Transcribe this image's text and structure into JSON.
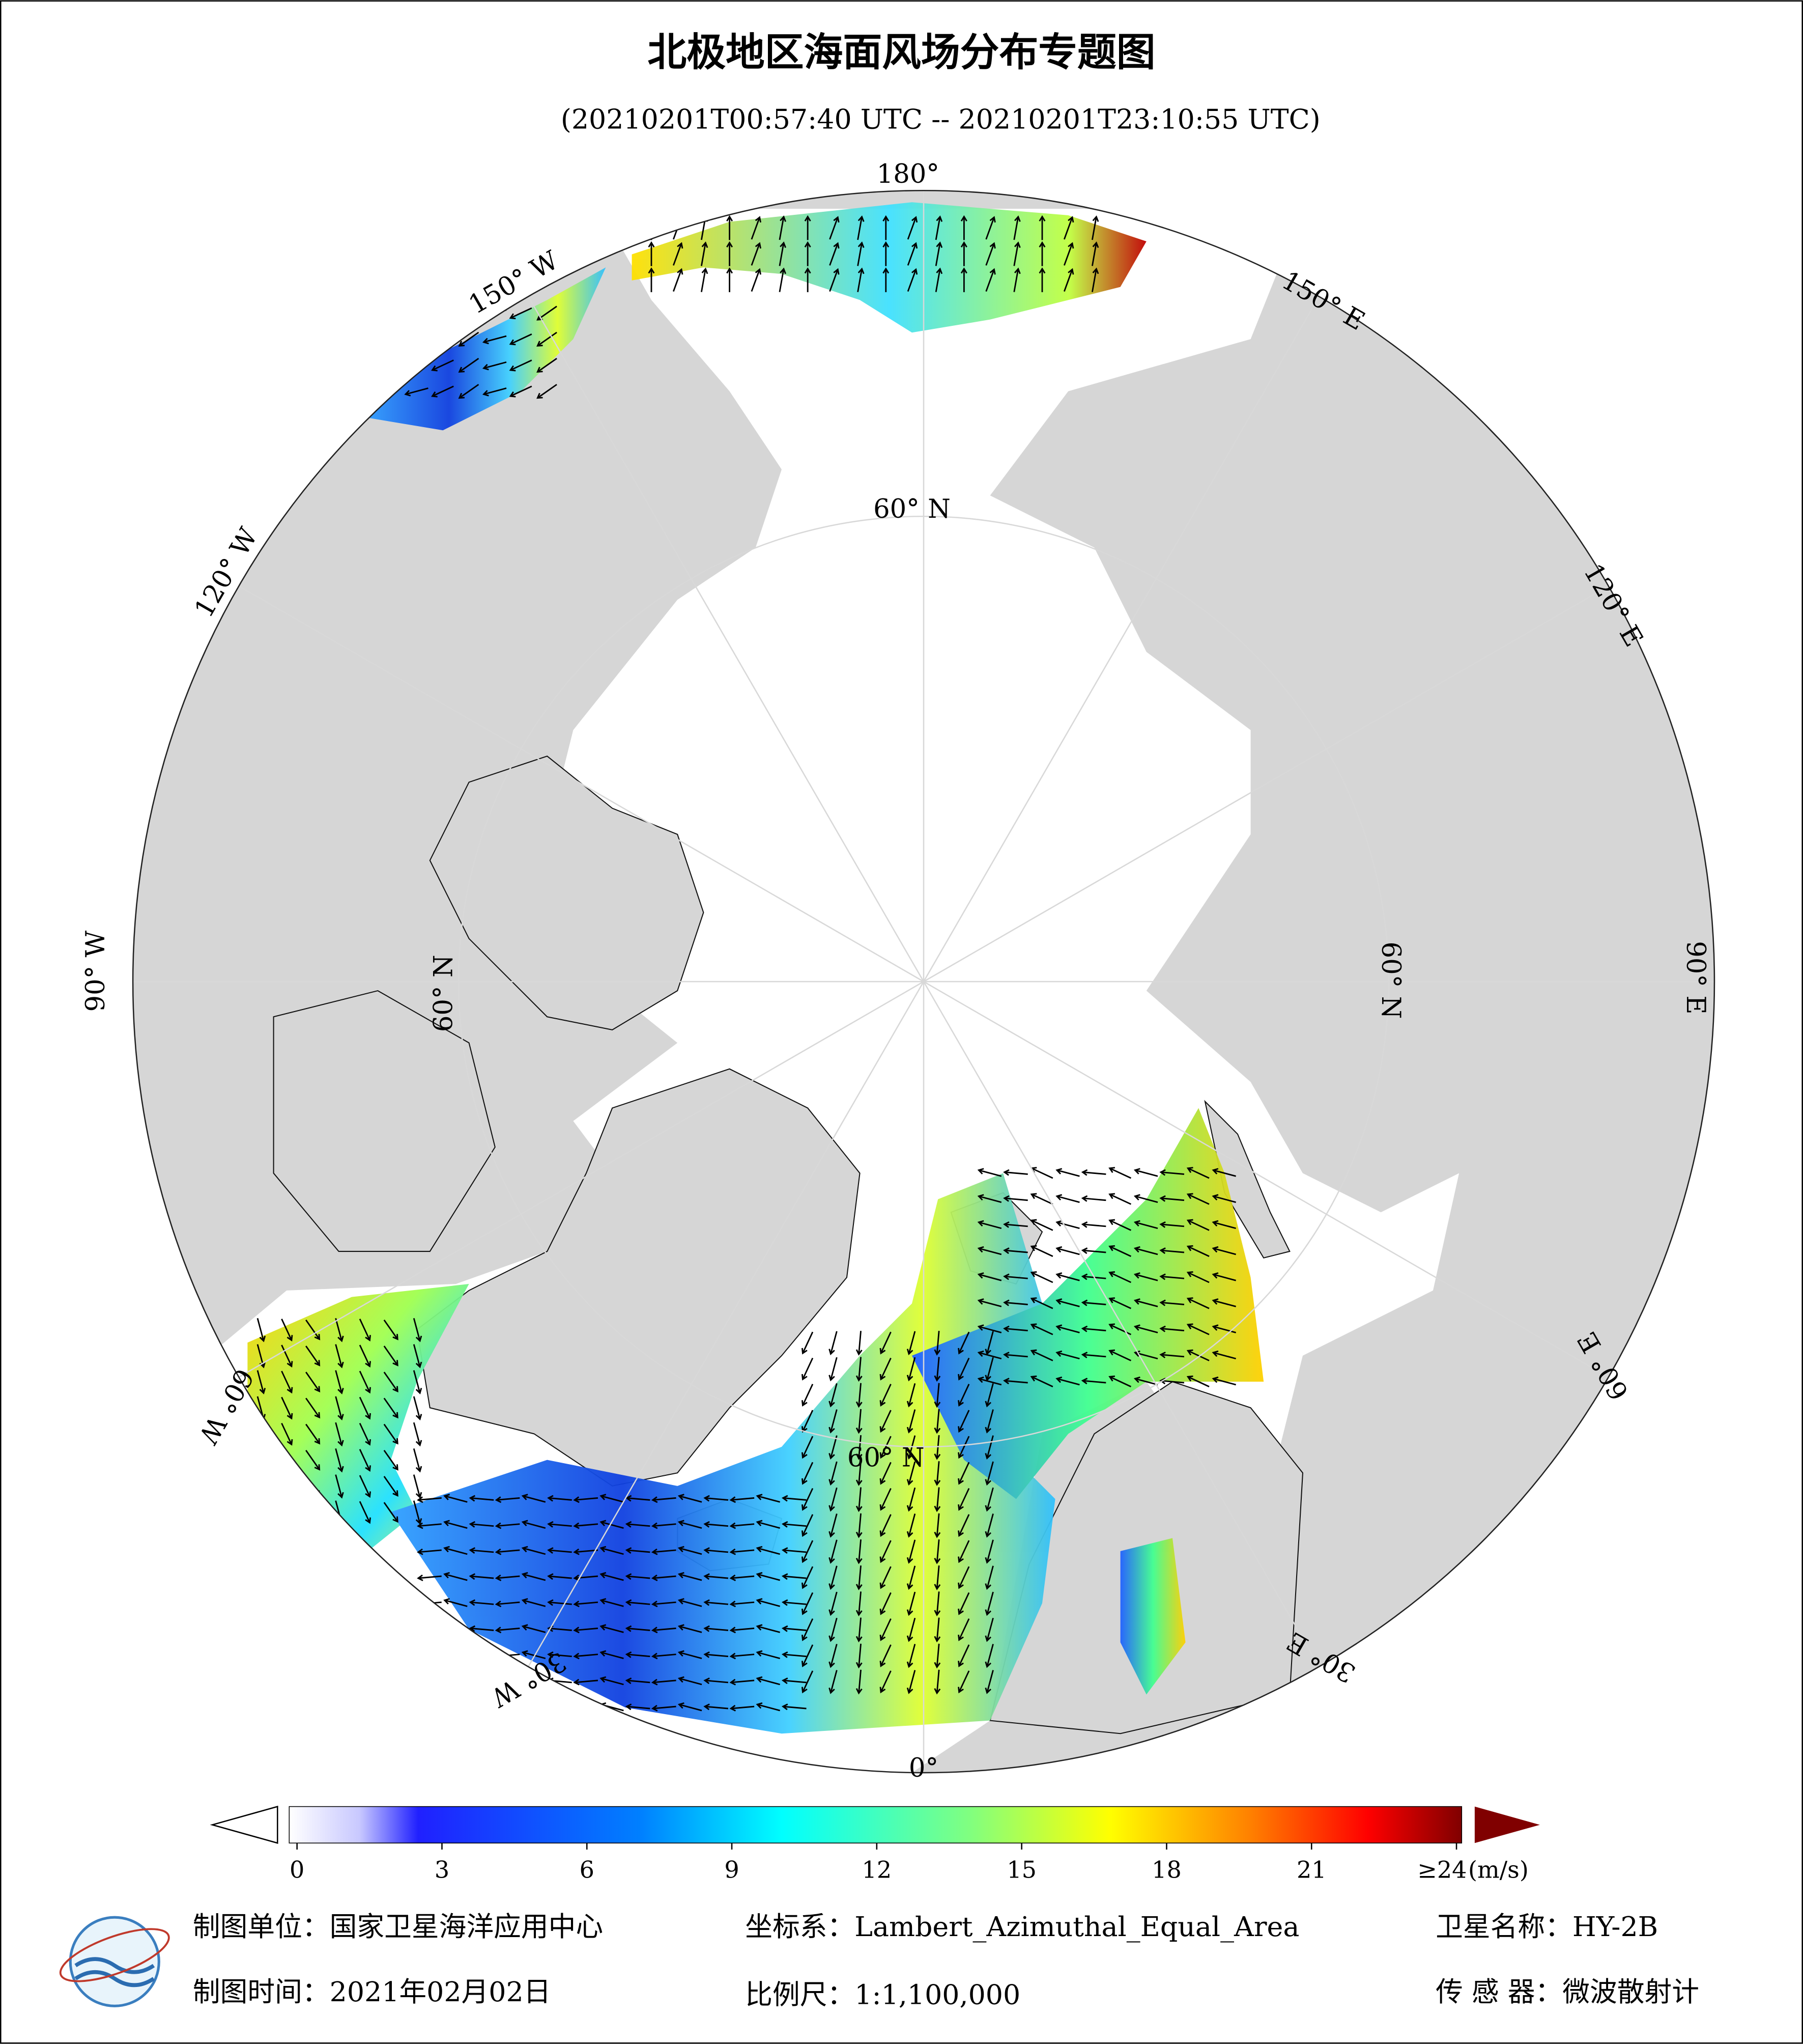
{
  "header": {
    "title": "北极地区海面风场分布专题图",
    "subtitle": "(20210201T00:57:40 UTC -- 20210201T23:10:55 UTC)"
  },
  "map": {
    "graticule_labels": [
      "180°",
      "150° W",
      "150° E",
      "120° W",
      "120° E",
      "90° W",
      "90° E",
      "60° W",
      "60° E",
      "30° W",
      "30° E",
      "0°"
    ],
    "latitude_labels": [
      "60° N",
      "60° N",
      "60° N",
      "60° N"
    ]
  },
  "colorbar": {
    "range": [
      0,
      24
    ],
    "ticks": [
      0,
      3,
      6,
      9,
      12,
      15,
      18,
      21,
      {
        "value": 24,
        "label": "≥24"
      }
    ],
    "unit": "(m/s)"
  },
  "footer": {
    "unit": "制图单位：国家卫星海洋应用中心",
    "coordinate": "坐标系：Lambert_Azimuthal_Equal_Area",
    "satellite": "卫星名称：HY-2B",
    "date": "制图时间：2021年02月02日",
    "scale": "比例尺：1:1,100,000",
    "sensor": "传 感 器：微波散射计"
  }
}
